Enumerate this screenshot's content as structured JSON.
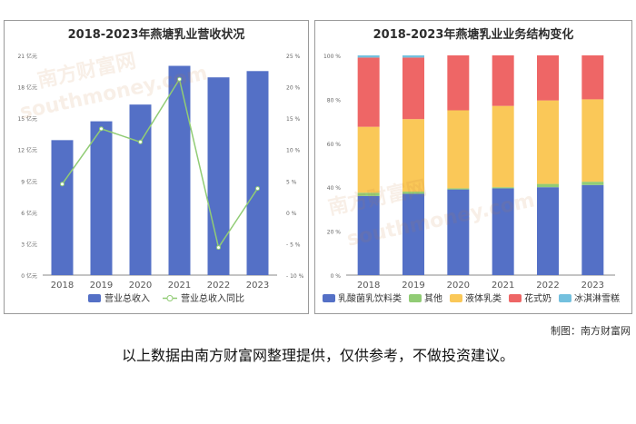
{
  "watermark": {
    "cn": "南方财富网",
    "en": "southmoney.com"
  },
  "credit": "制图：南方财富网",
  "disclaimer": "以上数据由南方财富网整理提供，仅供参考，不做投资建议。",
  "chart_data": [
    {
      "type": "bar",
      "title": "2018-2023年燕塘乳业营收状况",
      "categories": [
        "2018",
        "2019",
        "2020",
        "2021",
        "2022",
        "2023"
      ],
      "left_axis": {
        "ylim": [
          0,
          21
        ],
        "ticks": [
          0,
          3,
          6,
          9,
          12,
          15,
          18,
          21
        ],
        "unit": "亿元"
      },
      "right_axis": {
        "ylim": [
          -10,
          25
        ],
        "ticks": [
          -10,
          -5,
          0,
          5,
          10,
          15,
          20,
          25
        ],
        "unit": "%"
      },
      "series": [
        {
          "name": "营业总收入",
          "kind": "bar",
          "axis": "left",
          "color": "#5470c6",
          "values": [
            12.9,
            14.7,
            16.3,
            20.0,
            18.9,
            19.5
          ]
        },
        {
          "name": "营业总收入同比",
          "kind": "line",
          "axis": "right",
          "color": "#91cc75",
          "values": [
            4.5,
            13.3,
            11.2,
            21.2,
            -5.6,
            3.8
          ]
        }
      ],
      "grid": false,
      "legend": "bottom"
    },
    {
      "type": "bar",
      "stacked": true,
      "title": "2018-2023年燕塘乳业业务结构变化",
      "categories": [
        "2018",
        "2019",
        "2020",
        "2021",
        "2022",
        "2023"
      ],
      "ylim": [
        0,
        100
      ],
      "ticks": [
        0,
        20,
        40,
        60,
        80,
        100
      ],
      "unit": "%",
      "series": [
        {
          "name": "乳酸菌乳饮料类",
          "color": "#5470c6",
          "values": [
            36.0,
            37.0,
            39.0,
            39.5,
            40.0,
            41.0
          ]
        },
        {
          "name": "其他",
          "color": "#91cc75",
          "values": [
            1.5,
            1.0,
            0.5,
            0.5,
            1.5,
            1.5
          ]
        },
        {
          "name": "液体乳类",
          "color": "#fac858",
          "values": [
            30.0,
            33.0,
            35.5,
            37.0,
            38.0,
            37.5
          ]
        },
        {
          "name": "花式奶",
          "color": "#ee6666",
          "values": [
            31.5,
            28.0,
            25.0,
            23.0,
            20.5,
            20.0
          ]
        },
        {
          "name": "冰淇淋雪糕",
          "color": "#73c0de",
          "values": [
            1.0,
            1.0,
            0.0,
            0.0,
            0.0,
            0.0
          ]
        }
      ],
      "grid": false,
      "legend": "bottom"
    }
  ]
}
